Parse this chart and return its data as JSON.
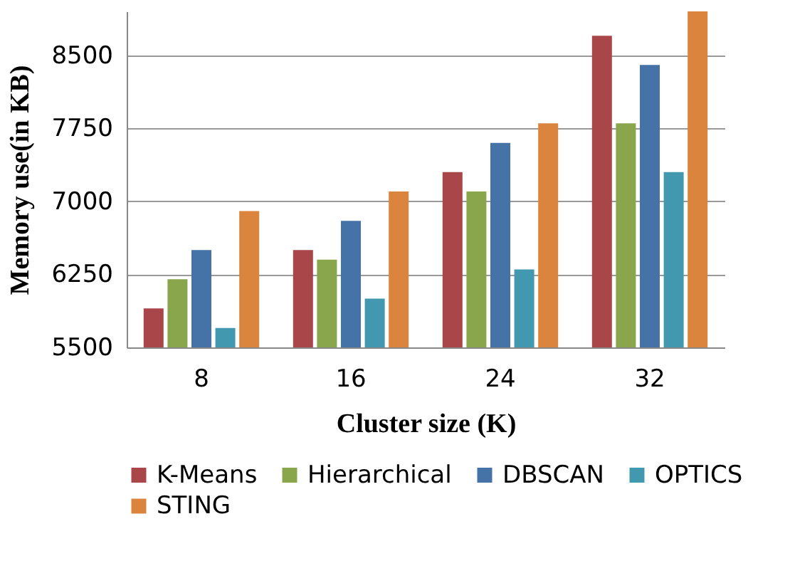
{
  "chart_data": {
    "type": "bar",
    "xlabel": "Cluster size (K)",
    "ylabel": "Memory use(in KB)",
    "categories": [
      "8",
      "16",
      "24",
      "32"
    ],
    "series": [
      {
        "name": "K-Means",
        "color": "#a9464a",
        "values": [
          5900,
          6500,
          7300,
          8700
        ]
      },
      {
        "name": "Hierarchical",
        "color": "#8aa64d",
        "values": [
          6200,
          6400,
          7100,
          7800
        ]
      },
      {
        "name": "DBSCAN",
        "color": "#4572a7",
        "values": [
          6500,
          6800,
          7600,
          8400
        ]
      },
      {
        "name": "OPTICS",
        "color": "#4299af",
        "values": [
          5700,
          6000,
          6300,
          7300
        ]
      },
      {
        "name": "STING",
        "color": "#db843d",
        "values": [
          6900,
          7100,
          7800,
          8950
        ]
      }
    ],
    "ylim": [
      5500,
      8950
    ],
    "yticks": [
      5500,
      6250,
      7000,
      7750,
      8500
    ],
    "grid": "y",
    "legend": "bottom"
  }
}
